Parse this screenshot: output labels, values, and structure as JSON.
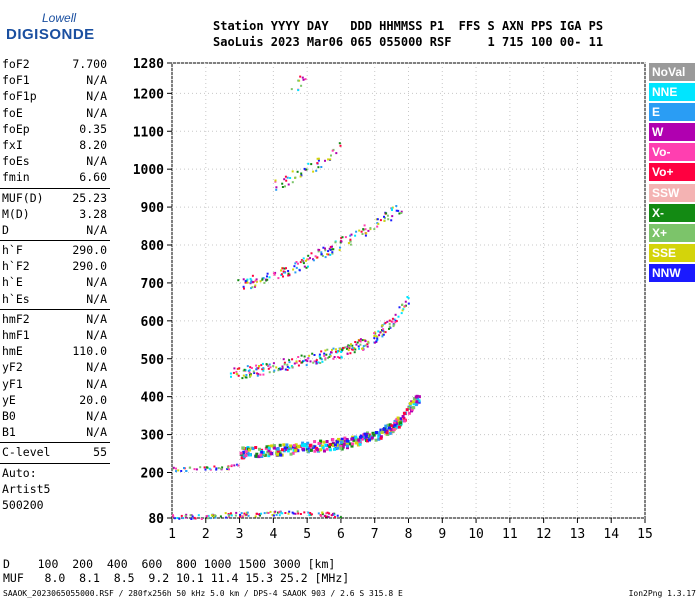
{
  "logo": {
    "line1": "Lowell",
    "line2": "DIGISONDE"
  },
  "header": {
    "row1": "Station YYYY DAY   DDD HHMMSS P1  FFS S AXN PPS IGA PS",
    "row2": "SaoLuis 2023 Mar06 065 055000 RSF     1 715 100 00- 11"
  },
  "params": {
    "g1": [
      [
        "foF2",
        "7.700"
      ],
      [
        "foF1",
        "N/A"
      ],
      [
        "foF1p",
        "N/A"
      ],
      [
        "foE",
        "N/A"
      ],
      [
        "foEp",
        "0.35"
      ],
      [
        "fxI",
        "8.20"
      ],
      [
        "foEs",
        "N/A"
      ],
      [
        "fmin",
        "6.60"
      ]
    ],
    "g2": [
      [
        "MUF(D)",
        "25.23"
      ],
      [
        "M(D)",
        "3.28"
      ],
      [
        "D",
        "N/A"
      ]
    ],
    "g3": [
      [
        "h`F",
        "290.0"
      ],
      [
        "h`F2",
        "290.0"
      ],
      [
        "h`E",
        "N/A"
      ],
      [
        "h`Es",
        "N/A"
      ]
    ],
    "g4": [
      [
        "hmF2",
        "N/A"
      ],
      [
        "hmF1",
        "N/A"
      ],
      [
        "hmE",
        "110.0"
      ],
      [
        "yF2",
        "N/A"
      ],
      [
        "yF1",
        "N/A"
      ],
      [
        "yE",
        "20.0"
      ],
      [
        "B0",
        "N/A"
      ],
      [
        "B1",
        "N/A"
      ]
    ],
    "g5": [
      [
        "C-level",
        "55"
      ]
    ],
    "auto": [
      "Auto:",
      "Artist5",
      "500200"
    ]
  },
  "legend": [
    {
      "label": "NoVal",
      "color": "#9a9a9a"
    },
    {
      "label": "NNE",
      "color": "#00e5ff"
    },
    {
      "label": "E",
      "color": "#2a9df4"
    },
    {
      "label": "W",
      "color": "#b000b0"
    },
    {
      "label": "Vo-",
      "color": "#ff3fb0"
    },
    {
      "label": "Vo+",
      "color": "#ff0040"
    },
    {
      "label": "SSW",
      "color": "#f4b3b3"
    },
    {
      "label": "X-",
      "color": "#138a13"
    },
    {
      "label": "X+",
      "color": "#7cc46a"
    },
    {
      "label": "SSE",
      "color": "#d4d40a"
    },
    {
      "label": "NNW",
      "color": "#1a1aff"
    }
  ],
  "footer": {
    "d_row": "D    100  200  400  600  800 1000 1500 3000 [km]",
    "muf_row": "MUF   8.0  8.1  8.5  9.2 10.1 11.4 15.3 25.2 [MHz]",
    "info": "SAAOK_2023065055000.RSF / 280fx256h 50 kHz 5.0 km / DPS-4 SAAOK 903 / 2.6 S 315.8 E",
    "version": "Ion2Png 1.3.17"
  },
  "chart_data": {
    "type": "scatter",
    "xlim": [
      1,
      15
    ],
    "ylim": [
      80,
      1280
    ],
    "x_ticks": [
      "1",
      "2",
      "3",
      "4",
      "5",
      "6",
      "7",
      "8",
      "9",
      "10",
      "11",
      "12",
      "13",
      "14",
      "15"
    ],
    "y_ticks": [
      "80",
      "200",
      "300",
      "400",
      "500",
      "600",
      "700",
      "800",
      "900",
      "1000",
      "1100",
      "1200",
      "1280"
    ],
    "y_tick_values": [
      80,
      200,
      300,
      400,
      500,
      600,
      700,
      800,
      900,
      1000,
      1100,
      1200,
      1280
    ],
    "traces": [
      {
        "x": [
          1.0,
          2.0,
          2.6,
          3.0,
          4.0,
          5.0,
          5.5,
          6.0
        ],
        "y": [
          85,
          85,
          90,
          92,
          94,
          95,
          92,
          90
        ]
      },
      {
        "x": [
          1.0,
          1.6,
          2.6,
          3.0
        ],
        "y": [
          210,
          212,
          215,
          220
        ]
      },
      {
        "x": [
          3.0,
          4.0,
          5.0,
          6.0,
          7.0,
          7.4,
          7.8,
          8.0,
          8.3
        ],
        "y": [
          255,
          262,
          270,
          280,
          300,
          318,
          345,
          375,
          405
        ]
      },
      {
        "x": [
          2.7,
          4.0,
          5.0,
          6.0,
          6.6,
          7.0,
          7.6,
          8.0
        ],
        "y": [
          462,
          480,
          500,
          520,
          540,
          560,
          610,
          660
        ]
      },
      {
        "x": [
          2.9,
          4.0,
          5.0,
          5.6,
          6.5,
          7.0,
          7.4,
          7.8
        ],
        "y": [
          695,
          720,
          760,
          790,
          830,
          860,
          880,
          905
        ]
      },
      {
        "x": [
          4.0,
          4.6,
          5.2,
          6.0
        ],
        "y": [
          960,
          985,
          1010,
          1060
        ]
      },
      {
        "x": [
          4.5,
          5.0
        ],
        "y": [
          1210,
          1250
        ]
      }
    ]
  }
}
